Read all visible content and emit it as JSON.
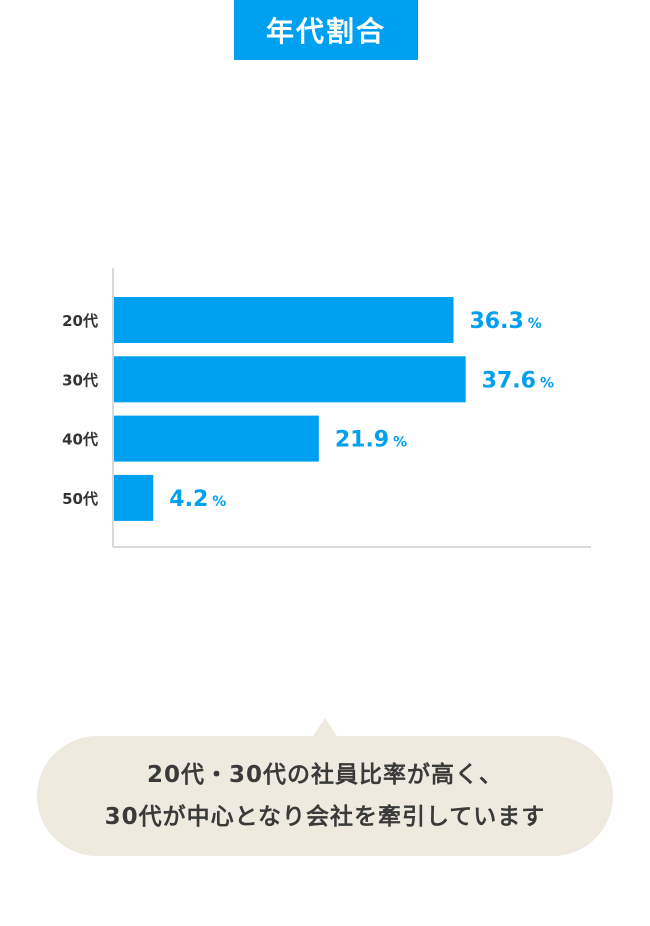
{
  "title": "年代割合",
  "colors": {
    "accent": "#00a0f0",
    "axis": "#d8d8d8",
    "bubble_bg": "#efeadf",
    "label_text": "#333333"
  },
  "chart_data": {
    "type": "bar",
    "orientation": "horizontal",
    "categories": [
      "20代",
      "30代",
      "40代",
      "50代"
    ],
    "values": [
      36.3,
      37.6,
      21.9,
      4.2
    ],
    "value_labels": [
      "36.3",
      "37.6",
      "21.9",
      "4.2"
    ],
    "unit": "%",
    "xlim": [
      0,
      51
    ],
    "grid": false
  },
  "summary": {
    "line1": "20代・30代の社員比率が高く、",
    "line2": "30代が中心となり会社を牽引しています"
  }
}
